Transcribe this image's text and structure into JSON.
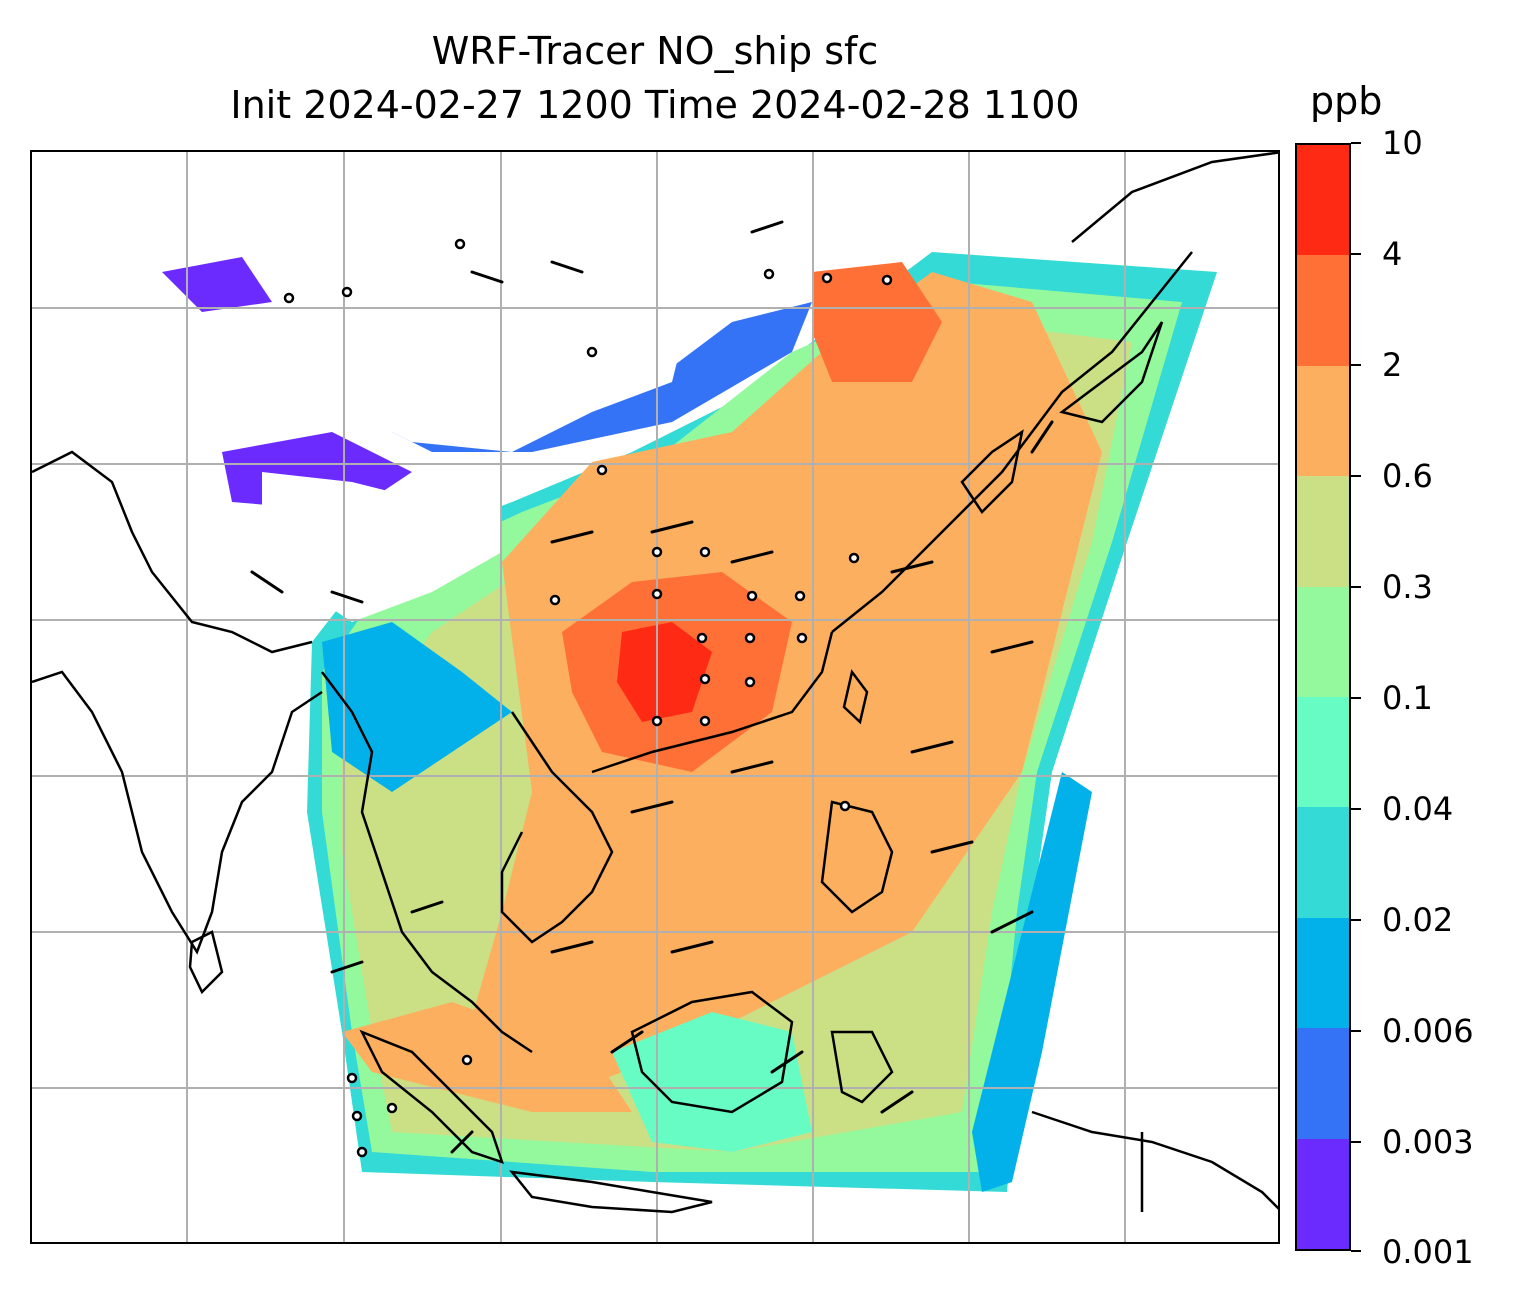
{
  "title": {
    "line1": "WRF-Tracer NO_ship sfc",
    "line2": "Init 2024-02-27 1200 Time 2024-02-28 1100"
  },
  "colorbar": {
    "unit": "ppb",
    "ticks": [
      "0.001",
      "0.003",
      "0.006",
      "0.02",
      "0.04",
      "0.1",
      "0.3",
      "0.6",
      "2",
      "4",
      "10"
    ],
    "colors": [
      "#6b2bff",
      "#3473f5",
      "#03b1ea",
      "#34dad6",
      "#67fcc4",
      "#93f99c",
      "#cbe085",
      "#fcb05f",
      "#ff7036",
      "#ff2a14"
    ]
  },
  "map": {
    "field": "NO_ship surface concentration",
    "gridlines": true,
    "coastlines": true,
    "wind_barbs": true
  }
}
